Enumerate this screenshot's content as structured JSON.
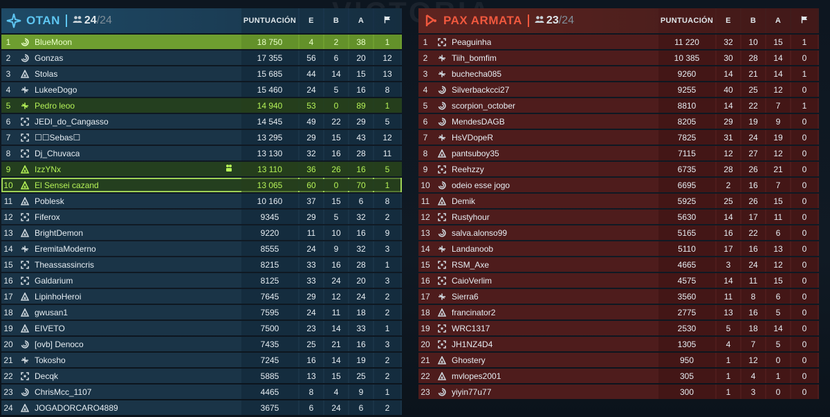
{
  "background_title": "VICTORIA",
  "columns": {
    "score": "PUNTUACIÓN",
    "e": "E",
    "b": "B",
    "a": "A",
    "flag_icon": "flag-icon"
  },
  "teams": [
    {
      "name": "OTAN",
      "count_current": "24",
      "count_max": "/24",
      "color": "#5ec6f2",
      "players": [
        {
          "rank": "1",
          "icon": "spiral-icon",
          "name": "BlueMoon",
          "score": "18 750",
          "e": "4",
          "b": "2",
          "a": "38",
          "f": "1",
          "state": "top"
        },
        {
          "rank": "2",
          "icon": "spiral-icon",
          "name": "Gonzas",
          "score": "17 355",
          "e": "56",
          "b": "6",
          "a": "20",
          "f": "12"
        },
        {
          "rank": "3",
          "icon": "delta-icon",
          "name": "Stolas",
          "score": "15 685",
          "e": "44",
          "b": "14",
          "a": "15",
          "f": "13"
        },
        {
          "rank": "4",
          "icon": "plane-icon",
          "name": "LukeeDogo",
          "score": "15 460",
          "e": "24",
          "b": "5",
          "a": "16",
          "f": "8"
        },
        {
          "rank": "5",
          "icon": "plane-icon",
          "name": "Pedro leoo",
          "score": "14 940",
          "e": "53",
          "b": "0",
          "a": "89",
          "f": "1",
          "state": "hl"
        },
        {
          "rank": "6",
          "icon": "bracket-icon",
          "name": "JEDI_do_Cangasso",
          "score": "14 545",
          "e": "49",
          "b": "22",
          "a": "29",
          "f": "5"
        },
        {
          "rank": "7",
          "icon": "bracket-icon",
          "name": "☐☐Sebas☐",
          "score": "13 295",
          "e": "29",
          "b": "15",
          "a": "43",
          "f": "12"
        },
        {
          "rank": "8",
          "icon": "bracket-icon",
          "name": "Dj_Chuvaca",
          "score": "13 130",
          "e": "32",
          "b": "16",
          "a": "28",
          "f": "11"
        },
        {
          "rank": "9",
          "icon": "delta-icon",
          "name": "IzzYNx",
          "score": "13 110",
          "e": "36",
          "b": "26",
          "a": "16",
          "f": "5",
          "state": "hl",
          "extra": "squad-icon"
        },
        {
          "rank": "10",
          "icon": "delta-icon",
          "name": "El Sensei cazand",
          "score": "13 065",
          "e": "60",
          "b": "0",
          "a": "70",
          "f": "1",
          "state": "hl sel"
        },
        {
          "rank": "11",
          "icon": "delta-icon",
          "name": "Poblesk",
          "score": "10 160",
          "e": "37",
          "b": "15",
          "a": "6",
          "f": "8"
        },
        {
          "rank": "12",
          "icon": "bracket-icon",
          "name": "Fiferox",
          "score": "9345",
          "e": "29",
          "b": "5",
          "a": "32",
          "f": "2"
        },
        {
          "rank": "13",
          "icon": "delta-icon",
          "name": "BrightDemon",
          "score": "9220",
          "e": "11",
          "b": "10",
          "a": "16",
          "f": "9"
        },
        {
          "rank": "14",
          "icon": "plane-icon",
          "name": "EremitaModerno",
          "score": "8555",
          "e": "24",
          "b": "9",
          "a": "32",
          "f": "3"
        },
        {
          "rank": "15",
          "icon": "bracket-icon",
          "name": "Theassassincris",
          "score": "8215",
          "e": "33",
          "b": "16",
          "a": "28",
          "f": "1"
        },
        {
          "rank": "16",
          "icon": "bracket-icon",
          "name": "Galdarium",
          "score": "8125",
          "e": "33",
          "b": "24",
          "a": "20",
          "f": "3"
        },
        {
          "rank": "17",
          "icon": "delta-icon",
          "name": "LipinhoHeroi",
          "score": "7645",
          "e": "29",
          "b": "12",
          "a": "24",
          "f": "2"
        },
        {
          "rank": "18",
          "icon": "delta-icon",
          "name": "gwusan1",
          "score": "7595",
          "e": "24",
          "b": "11",
          "a": "18",
          "f": "2"
        },
        {
          "rank": "19",
          "icon": "delta-icon",
          "name": "EIVETO",
          "score": "7500",
          "e": "23",
          "b": "14",
          "a": "33",
          "f": "1"
        },
        {
          "rank": "20",
          "icon": "spiral-icon",
          "name": "[ovb] Denoco",
          "score": "7435",
          "e": "25",
          "b": "21",
          "a": "16",
          "f": "3"
        },
        {
          "rank": "21",
          "icon": "plane-icon",
          "name": "Tokosho",
          "score": "7245",
          "e": "16",
          "b": "14",
          "a": "19",
          "f": "2"
        },
        {
          "rank": "22",
          "icon": "bracket-icon",
          "name": "Decqk",
          "score": "5885",
          "e": "13",
          "b": "15",
          "a": "25",
          "f": "2"
        },
        {
          "rank": "23",
          "icon": "spiral-icon",
          "name": "ChrisMcc_1107",
          "score": "4465",
          "e": "8",
          "b": "4",
          "a": "9",
          "f": "1"
        },
        {
          "rank": "24",
          "icon": "delta-icon",
          "name": "JOGADORCARO4889",
          "score": "3675",
          "e": "6",
          "b": "24",
          "a": "6",
          "f": "2"
        }
      ]
    },
    {
      "name": "PAX ARMATA",
      "count_current": "23",
      "count_max": "/24",
      "color": "#f0583e",
      "players": [
        {
          "rank": "1",
          "icon": "bracket-icon",
          "name": "Peaguinha",
          "score": "11 220",
          "e": "32",
          "b": "10",
          "a": "15",
          "f": "1"
        },
        {
          "rank": "2",
          "icon": "plane-icon",
          "name": "Tiih_bomfim",
          "score": "10 385",
          "e": "30",
          "b": "28",
          "a": "14",
          "f": "0"
        },
        {
          "rank": "3",
          "icon": "plane-icon",
          "name": "buchecha085",
          "score": "9260",
          "e": "14",
          "b": "21",
          "a": "14",
          "f": "1"
        },
        {
          "rank": "4",
          "icon": "spiral-icon",
          "name": "Silverbackcci27",
          "score": "9255",
          "e": "40",
          "b": "25",
          "a": "12",
          "f": "0"
        },
        {
          "rank": "5",
          "icon": "spiral-icon",
          "name": "scorpion_october",
          "score": "8810",
          "e": "14",
          "b": "22",
          "a": "7",
          "f": "1"
        },
        {
          "rank": "6",
          "icon": "spiral-icon",
          "name": "MendesDAGB",
          "score": "8205",
          "e": "29",
          "b": "19",
          "a": "9",
          "f": "0"
        },
        {
          "rank": "7",
          "icon": "plane-icon",
          "name": "HsVDopeR",
          "score": "7825",
          "e": "31",
          "b": "24",
          "a": "19",
          "f": "0"
        },
        {
          "rank": "8",
          "icon": "delta-icon",
          "name": "pantsuboy35",
          "score": "7115",
          "e": "12",
          "b": "27",
          "a": "12",
          "f": "0"
        },
        {
          "rank": "9",
          "icon": "bracket-icon",
          "name": "Reehzzy",
          "score": "6735",
          "e": "28",
          "b": "26",
          "a": "21",
          "f": "0"
        },
        {
          "rank": "10",
          "icon": "spiral-icon",
          "name": "odeio esse jogo",
          "score": "6695",
          "e": "2",
          "b": "16",
          "a": "7",
          "f": "0"
        },
        {
          "rank": "11",
          "icon": "delta-icon",
          "name": "Demik",
          "score": "5925",
          "e": "25",
          "b": "26",
          "a": "15",
          "f": "0"
        },
        {
          "rank": "12",
          "icon": "bracket-icon",
          "name": "Rustyhour",
          "score": "5630",
          "e": "14",
          "b": "17",
          "a": "11",
          "f": "0"
        },
        {
          "rank": "13",
          "icon": "spiral-icon",
          "name": "salva.alonso99",
          "score": "5165",
          "e": "16",
          "b": "22",
          "a": "6",
          "f": "0"
        },
        {
          "rank": "14",
          "icon": "plane-icon",
          "name": "Landanoob",
          "score": "5110",
          "e": "17",
          "b": "16",
          "a": "13",
          "f": "0"
        },
        {
          "rank": "15",
          "icon": "bracket-icon",
          "name": "RSM_Axe",
          "score": "4665",
          "e": "3",
          "b": "24",
          "a": "12",
          "f": "0"
        },
        {
          "rank": "16",
          "icon": "bracket-icon",
          "name": "CaioVerlim",
          "score": "4575",
          "e": "14",
          "b": "11",
          "a": "15",
          "f": "0"
        },
        {
          "rank": "17",
          "icon": "plane-icon",
          "name": "Sierra6",
          "score": "3560",
          "e": "11",
          "b": "8",
          "a": "6",
          "f": "0"
        },
        {
          "rank": "18",
          "icon": "delta-icon",
          "name": "francinator2",
          "score": "2775",
          "e": "13",
          "b": "16",
          "a": "5",
          "f": "0"
        },
        {
          "rank": "19",
          "icon": "bracket-icon",
          "name": "WRC1317",
          "score": "2530",
          "e": "5",
          "b": "18",
          "a": "14",
          "f": "0"
        },
        {
          "rank": "20",
          "icon": "bracket-icon",
          "name": "JH1NZ4D4",
          "score": "1305",
          "e": "4",
          "b": "7",
          "a": "5",
          "f": "0"
        },
        {
          "rank": "21",
          "icon": "delta-icon",
          "name": "Ghostery",
          "score": "950",
          "e": "1",
          "b": "12",
          "a": "0",
          "f": "0"
        },
        {
          "rank": "22",
          "icon": "delta-icon",
          "name": "mvlopes2001",
          "score": "305",
          "e": "1",
          "b": "4",
          "a": "1",
          "f": "0"
        },
        {
          "rank": "23",
          "icon": "spiral-icon",
          "name": "yiyin77u77",
          "score": "300",
          "e": "1",
          "b": "3",
          "a": "0",
          "f": "0"
        }
      ]
    }
  ]
}
